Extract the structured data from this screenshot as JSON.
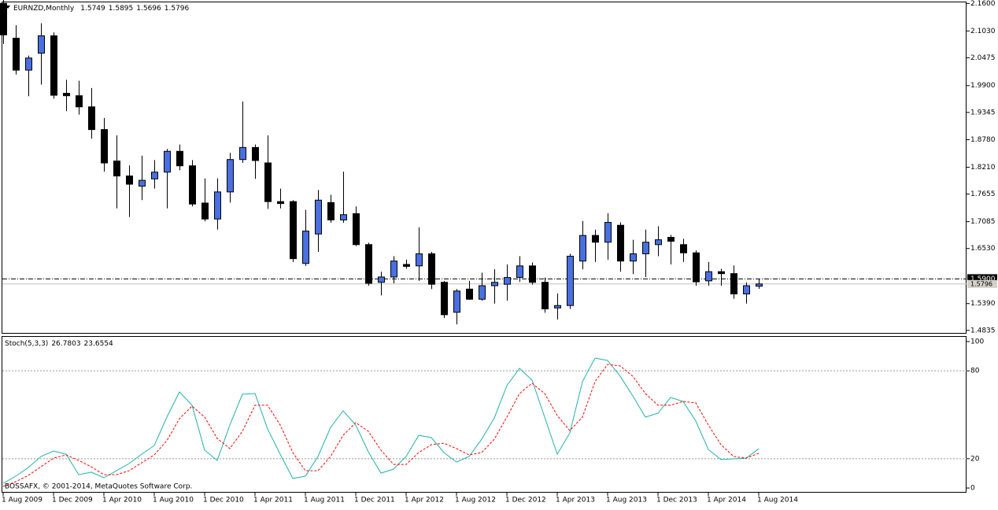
{
  "chart_data": [
    {
      "type": "candlestick",
      "title": "EURNZD,Monthly",
      "categories": [
        "1 Aug 2009",
        null,
        null,
        null,
        "1 Dec 2009",
        null,
        null,
        null,
        "1 Apr 2010",
        null,
        null,
        null,
        "1 Aug 2010",
        null,
        null,
        null,
        "1 Dec 2010",
        null,
        null,
        null,
        "1 Apr 2011",
        null,
        null,
        null,
        "1 Aug 2011",
        null,
        null,
        null,
        "1 Dec 2011",
        null,
        null,
        null,
        "1 Apr 2012",
        null,
        null,
        null,
        "1 Aug 2012",
        null,
        null,
        null,
        "1 Dec 2012",
        null,
        null,
        null,
        "1 Apr 2013",
        null,
        null,
        null,
        "1 Aug 2013",
        null,
        null,
        null,
        "1 Dec 2013",
        null,
        null,
        null,
        "1 Apr 2014",
        null,
        null,
        null,
        "1 Aug 2014"
      ],
      "open": [
        2.16,
        2.088,
        2.022,
        2.057,
        2.093,
        1.974,
        1.969,
        1.946,
        1.899,
        1.834,
        1.803,
        1.782,
        1.797,
        1.811,
        1.854,
        1.824,
        1.747,
        1.714,
        1.77,
        1.837,
        1.862,
        1.83,
        1.75,
        1.75,
        1.622,
        1.683,
        1.748,
        1.712,
        1.725,
        1.661,
        1.583,
        1.594,
        1.62,
        1.617,
        1.642,
        1.583,
        1.521,
        1.569,
        1.548,
        1.576,
        1.579,
        1.593,
        1.617,
        1.583,
        1.53,
        1.535,
        1.627,
        1.68,
        1.666,
        1.701,
        1.627,
        1.642,
        1.661,
        1.676,
        1.661,
        1.644,
        1.586,
        1.605,
        1.601,
        1.559,
        1.5749
      ],
      "high": [
        2.167,
        2.115,
        2.052,
        2.119,
        2.1,
        2.002,
        2.0,
        1.985,
        1.923,
        1.887,
        1.825,
        1.845,
        1.836,
        1.859,
        1.868,
        1.836,
        1.798,
        1.798,
        1.851,
        1.957,
        1.868,
        1.887,
        1.777,
        1.753,
        1.733,
        1.774,
        1.764,
        1.812,
        1.74,
        1.665,
        1.605,
        1.637,
        1.63,
        1.697,
        1.646,
        1.586,
        1.569,
        1.586,
        1.603,
        1.61,
        1.62,
        1.637,
        1.624,
        1.593,
        1.56,
        1.642,
        1.71,
        1.692,
        1.726,
        1.707,
        1.671,
        1.692,
        1.699,
        1.681,
        1.673,
        1.649,
        1.625,
        1.611,
        1.618,
        1.583,
        1.5895
      ],
      "low": [
        2.076,
        2.013,
        1.968,
        1.992,
        1.963,
        1.937,
        1.93,
        1.88,
        1.812,
        1.736,
        1.718,
        1.753,
        1.777,
        1.736,
        1.815,
        1.74,
        1.709,
        1.692,
        1.748,
        1.83,
        1.797,
        1.735,
        1.736,
        1.625,
        1.617,
        1.646,
        1.706,
        1.706,
        1.658,
        1.576,
        1.556,
        1.581,
        1.611,
        1.586,
        1.569,
        1.509,
        1.496,
        1.547,
        1.545,
        1.539,
        1.545,
        1.584,
        1.578,
        1.52,
        1.506,
        1.528,
        1.61,
        1.625,
        1.63,
        1.605,
        1.6,
        1.594,
        1.637,
        1.62,
        1.625,
        1.576,
        1.576,
        1.576,
        1.549,
        1.539,
        1.5696
      ],
      "close": [
        2.095,
        2.022,
        2.047,
        2.093,
        1.97,
        1.969,
        1.946,
        1.899,
        1.83,
        1.803,
        1.786,
        1.794,
        1.811,
        1.854,
        1.824,
        1.745,
        1.714,
        1.77,
        1.837,
        1.862,
        1.835,
        1.75,
        1.746,
        1.632,
        1.689,
        1.753,
        1.712,
        1.723,
        1.661,
        1.581,
        1.594,
        1.627,
        1.616,
        1.642,
        1.579,
        1.516,
        1.565,
        1.548,
        1.576,
        1.583,
        1.593,
        1.617,
        1.583,
        1.528,
        1.535,
        1.637,
        1.68,
        1.666,
        1.707,
        1.627,
        1.642,
        1.666,
        1.671,
        1.668,
        1.644,
        1.584,
        1.605,
        1.601,
        1.559,
        1.576,
        1.5796
      ],
      "up_color": "#4a6fe0",
      "down_color": "#000000",
      "ylim": [
        1.4767,
        2.1638
      ],
      "yticks": [
        {
          "value": 2.16,
          "label": "2.1600"
        },
        {
          "value": 2.103,
          "label": "2.1030"
        },
        {
          "value": 2.0475,
          "label": "2.0475"
        },
        {
          "value": 1.99,
          "label": "1.9900"
        },
        {
          "value": 1.9345,
          "label": "1.9345"
        },
        {
          "value": 1.878,
          "label": "1.8780"
        },
        {
          "value": 1.821,
          "label": "1.8210"
        },
        {
          "value": 1.7655,
          "label": "1.7655"
        },
        {
          "value": 1.7085,
          "label": "1.7085"
        },
        {
          "value": 1.653,
          "label": "1.6530"
        },
        {
          "value": 1.539,
          "label": "1.5390"
        },
        {
          "value": 1.4835,
          "label": "1.4835"
        }
      ],
      "hline": {
        "value": 1.59,
        "label": "1.5900"
      },
      "footer": "BOSSAFX, © 2001-2014, MetaQuotes Software Corp."
    },
    {
      "type": "line",
      "title": "Stoch(5,3,3)",
      "series": [
        {
          "name": "%K",
          "color": "#20b2aa",
          "values": [
            3.2,
            8.1,
            14.0,
            21.5,
            25.3,
            23.1,
            9.1,
            10.8,
            7.0,
            11.8,
            16.7,
            23.1,
            29.0,
            48.4,
            65.6,
            56.5,
            25.8,
            18.8,
            43.0,
            64.0,
            64.5,
            40.3,
            23.1,
            6.5,
            8.1,
            21.5,
            41.4,
            52.7,
            43.0,
            24.7,
            10.2,
            12.9,
            21.5,
            36.0,
            34.4,
            24.2,
            17.7,
            21.5,
            33.3,
            47.8,
            69.9,
            81.7,
            73.7,
            48.4,
            23.1,
            37.6,
            72.6,
            88.7,
            87.1,
            76.3,
            62.9,
            48.4,
            51.1,
            61.8,
            59.1,
            45.7,
            26.3,
            19.4,
            19.9,
            20.4,
            26.7803
          ]
        },
        {
          "name": "%D",
          "color": "#ff0000",
          "dashed": true,
          "values": [
            1.1,
            4.3,
            8.6,
            14.5,
            20.4,
            22.6,
            18.8,
            14.5,
            9.1,
            9.1,
            11.8,
            17.2,
            22.6,
            32.3,
            47.3,
            55.9,
            48.4,
            33.9,
            26.9,
            38.7,
            56.5,
            56.5,
            43.0,
            24.2,
            11.8,
            11.8,
            21.5,
            36.0,
            44.6,
            38.7,
            25.8,
            16.1,
            16.1,
            24.2,
            29.6,
            30.6,
            26.9,
            22.6,
            24.2,
            33.3,
            48.4,
            64.5,
            71.5,
            64.5,
            49.5,
            39.2,
            48.4,
            72.6,
            84.4,
            83.3,
            76.3,
            64.5,
            56.5,
            56.5,
            59.1,
            58.1,
            43.0,
            29.6,
            21.5,
            20.4,
            23.6554
          ]
        }
      ],
      "ylim": [
        -3.2,
        103.2
      ],
      "yticks": [
        100,
        80,
        20,
        0
      ],
      "levels": [
        80,
        20
      ]
    }
  ]
}
